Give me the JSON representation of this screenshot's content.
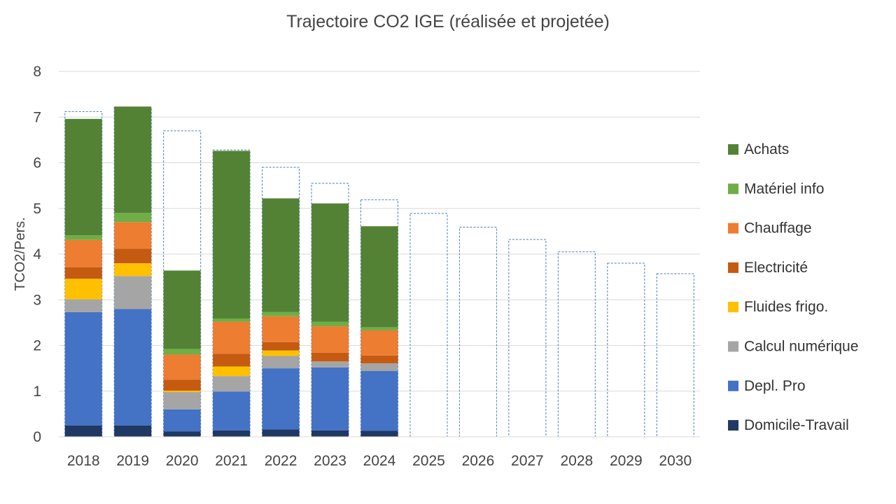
{
  "chart_data": {
    "type": "bar",
    "stacked": true,
    "title": "Trajectoire CO2 IGE (réalisée et projetée)",
    "xlabel": "",
    "ylabel": "TCO2/Pers.",
    "ylim": [
      0,
      8
    ],
    "yticks": [
      0,
      1,
      2,
      3,
      4,
      5,
      6,
      7,
      8
    ],
    "grid": true,
    "legend_position": "right",
    "categories": [
      "2018",
      "2019",
      "2020",
      "2021",
      "2022",
      "2023",
      "2024",
      "2025",
      "2026",
      "2027",
      "2028",
      "2029",
      "2030"
    ],
    "series": [
      {
        "name": "Domicile-Travail",
        "color": "#1f3864",
        "values": [
          0.25,
          0.25,
          0.12,
          0.14,
          0.16,
          0.14,
          0.13,
          null,
          null,
          null,
          null,
          null,
          null
        ]
      },
      {
        "name": "Depl. Pro",
        "color": "#4472c4",
        "values": [
          2.48,
          2.55,
          0.48,
          0.85,
          1.34,
          1.38,
          1.31,
          null,
          null,
          null,
          null,
          null,
          null
        ]
      },
      {
        "name": "Calcul numérique",
        "color": "#a5a5a5",
        "values": [
          0.28,
          0.72,
          0.38,
          0.34,
          0.27,
          0.13,
          0.17,
          null,
          null,
          null,
          null,
          null,
          null
        ]
      },
      {
        "name": "Fluides frigo.",
        "color": "#ffc000",
        "values": [
          0.45,
          0.28,
          0.03,
          0.21,
          0.12,
          0.0,
          0.0,
          null,
          null,
          null,
          null,
          null,
          null
        ]
      },
      {
        "name": "Electricité",
        "color": "#c55a11",
        "values": [
          0.25,
          0.32,
          0.24,
          0.28,
          0.18,
          0.19,
          0.17,
          null,
          null,
          null,
          null,
          null,
          null
        ]
      },
      {
        "name": "Chauffage",
        "color": "#ed7d31",
        "values": [
          0.6,
          0.58,
          0.55,
          0.7,
          0.57,
          0.58,
          0.55,
          null,
          null,
          null,
          null,
          null,
          null
        ]
      },
      {
        "name": "Matériel info",
        "color": "#70ad47",
        "values": [
          0.1,
          0.2,
          0.12,
          0.07,
          0.09,
          0.1,
          0.07,
          null,
          null,
          null,
          null,
          null,
          null
        ]
      },
      {
        "name": "Achats",
        "color": "#548235",
        "values": [
          2.55,
          2.33,
          1.72,
          3.67,
          2.49,
          2.59,
          2.21,
          null,
          null,
          null,
          null,
          null,
          null
        ]
      }
    ],
    "projection_totals": [
      7.12,
      7.22,
      6.7,
      6.28,
      5.9,
      5.55,
      5.19,
      4.89,
      4.59,
      4.32,
      4.05,
      3.8,
      3.57
    ],
    "projection_style": {
      "stroke": "#4a7ebb",
      "dash": "dashed"
    }
  }
}
